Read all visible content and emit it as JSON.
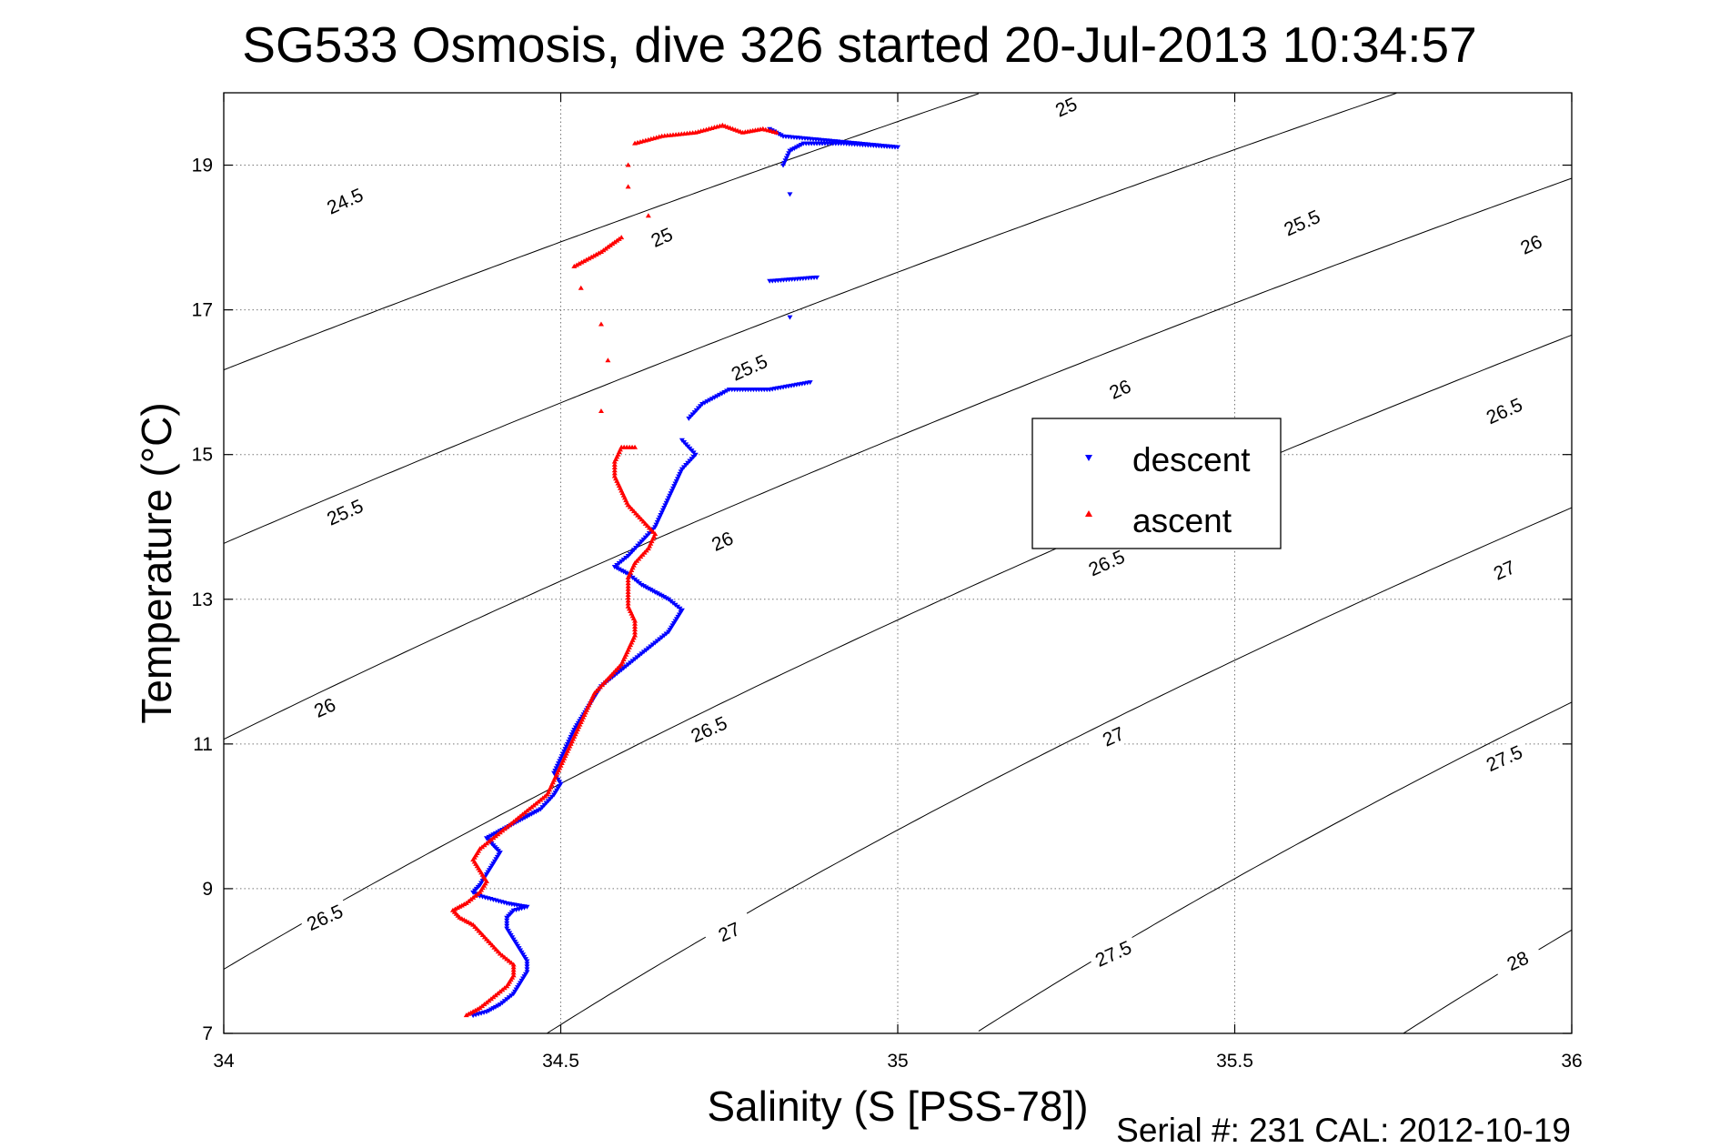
{
  "chart_data": {
    "type": "scatter",
    "title": "SG533 Osmosis, dive 326 started 20-Jul-2013 10:34:57",
    "xlabel": "Salinity (S [PSS-78])",
    "ylabel": "Temperature (°C)",
    "xlim": [
      34,
      36
    ],
    "ylim": [
      7,
      20
    ],
    "x_ticks": [
      34,
      34.5,
      35,
      35.5,
      36
    ],
    "x_tick_labels": [
      "34",
      "34.5",
      "35",
      "35.5",
      "36"
    ],
    "y_ticks": [
      7,
      9,
      11,
      13,
      15,
      17,
      19
    ],
    "y_tick_labels": [
      "7",
      "9",
      "11",
      "13",
      "15",
      "17",
      "19"
    ],
    "grid": true,
    "legend_position": "right-center",
    "footer": "Serial #: 231  CAL: 2012-10-19",
    "density_contours": {
      "levels": [
        24.5,
        25,
        25.5,
        26,
        26.5,
        27,
        27.5,
        28
      ],
      "level_labels": [
        "24.5",
        "25",
        "25.5",
        "26",
        "26.5",
        "27",
        "27.5",
        "28"
      ],
      "label_positions": [
        {
          "s": 34.18,
          "t": 18.5,
          "text": "24.5"
        },
        {
          "s": 34.65,
          "t": 18.0,
          "text": "25"
        },
        {
          "s": 35.25,
          "t": 19.8,
          "text": "25"
        },
        {
          "s": 34.18,
          "t": 14.2,
          "text": "25.5"
        },
        {
          "s": 34.78,
          "t": 16.2,
          "text": "25.5"
        },
        {
          "s": 35.6,
          "t": 18.2,
          "text": "25.5"
        },
        {
          "s": 34.15,
          "t": 11.5,
          "text": "26"
        },
        {
          "s": 34.74,
          "t": 13.8,
          "text": "26"
        },
        {
          "s": 35.33,
          "t": 15.9,
          "text": "26"
        },
        {
          "s": 35.94,
          "t": 17.9,
          "text": "26"
        },
        {
          "s": 34.15,
          "t": 8.6,
          "text": "26.5"
        },
        {
          "s": 34.72,
          "t": 11.2,
          "text": "26.5"
        },
        {
          "s": 35.31,
          "t": 13.5,
          "text": "26.5"
        },
        {
          "s": 35.9,
          "t": 15.6,
          "text": "26.5"
        },
        {
          "s": 34.75,
          "t": 8.4,
          "text": "27"
        },
        {
          "s": 35.32,
          "t": 11.1,
          "text": "27"
        },
        {
          "s": 35.9,
          "t": 13.4,
          "text": "27"
        },
        {
          "s": 35.32,
          "t": 8.1,
          "text": "27.5"
        },
        {
          "s": 35.9,
          "t": 10.8,
          "text": "27.5"
        },
        {
          "s": 35.92,
          "t": 8.0,
          "text": "28"
        }
      ]
    },
    "series": [
      {
        "name": "descent",
        "color": "#0000ff",
        "marker": "triangle-down",
        "points": [
          [
            34.37,
            7.25
          ],
          [
            34.39,
            7.3
          ],
          [
            34.41,
            7.4
          ],
          [
            34.43,
            7.55
          ],
          [
            34.44,
            7.7
          ],
          [
            34.45,
            7.85
          ],
          [
            34.45,
            8.0
          ],
          [
            34.44,
            8.15
          ],
          [
            34.43,
            8.3
          ],
          [
            34.42,
            8.45
          ],
          [
            34.42,
            8.6
          ],
          [
            34.43,
            8.7
          ],
          [
            34.45,
            8.75
          ],
          [
            34.42,
            8.8
          ],
          [
            34.4,
            8.85
          ],
          [
            34.38,
            8.9
          ],
          [
            34.37,
            8.95
          ],
          [
            34.38,
            9.05
          ],
          [
            34.39,
            9.2
          ],
          [
            34.4,
            9.35
          ],
          [
            34.41,
            9.5
          ],
          [
            34.4,
            9.6
          ],
          [
            34.39,
            9.7
          ],
          [
            34.41,
            9.8
          ],
          [
            34.43,
            9.9
          ],
          [
            34.45,
            10.0
          ],
          [
            34.47,
            10.1
          ],
          [
            34.49,
            10.3
          ],
          [
            34.5,
            10.45
          ],
          [
            34.49,
            10.6
          ],
          [
            34.5,
            10.8
          ],
          [
            34.51,
            11.0
          ],
          [
            34.52,
            11.2
          ],
          [
            34.53,
            11.35
          ],
          [
            34.54,
            11.5
          ],
          [
            34.55,
            11.65
          ],
          [
            34.56,
            11.8
          ],
          [
            34.58,
            11.95
          ],
          [
            34.6,
            12.1
          ],
          [
            34.62,
            12.25
          ],
          [
            34.64,
            12.4
          ],
          [
            34.66,
            12.55
          ],
          [
            34.67,
            12.7
          ],
          [
            34.68,
            12.85
          ],
          [
            34.66,
            13.0
          ],
          [
            34.64,
            13.1
          ],
          [
            34.62,
            13.2
          ],
          [
            34.6,
            13.35
          ],
          [
            34.58,
            13.45
          ],
          [
            34.6,
            13.6
          ],
          [
            34.62,
            13.8
          ],
          [
            34.64,
            14.0
          ],
          [
            34.65,
            14.2
          ],
          [
            34.66,
            14.4
          ],
          [
            34.67,
            14.6
          ],
          [
            34.68,
            14.8
          ],
          [
            34.7,
            15.0
          ],
          [
            34.68,
            15.2
          ],
          [
            34.69,
            15.5
          ],
          [
            34.71,
            15.7
          ],
          [
            34.75,
            15.9
          ],
          [
            34.81,
            15.9
          ],
          [
            34.87,
            16.0
          ],
          [
            34.84,
            16.9
          ],
          [
            34.81,
            17.4
          ],
          [
            34.88,
            17.45
          ],
          [
            34.84,
            18.6
          ],
          [
            34.83,
            19.0
          ],
          [
            34.84,
            19.2
          ],
          [
            34.86,
            19.3
          ],
          [
            34.92,
            19.3
          ],
          [
            35.0,
            19.25
          ],
          [
            34.83,
            19.4
          ],
          [
            34.81,
            19.5
          ]
        ]
      },
      {
        "name": "ascent",
        "color": "#ff0000",
        "marker": "triangle-up",
        "points": [
          [
            34.36,
            7.25
          ],
          [
            34.38,
            7.35
          ],
          [
            34.4,
            7.5
          ],
          [
            34.42,
            7.65
          ],
          [
            34.43,
            7.8
          ],
          [
            34.43,
            7.95
          ],
          [
            34.41,
            8.1
          ],
          [
            34.39,
            8.3
          ],
          [
            34.37,
            8.5
          ],
          [
            34.35,
            8.6
          ],
          [
            34.34,
            8.7
          ],
          [
            34.36,
            8.8
          ],
          [
            34.38,
            8.95
          ],
          [
            34.39,
            9.1
          ],
          [
            34.38,
            9.25
          ],
          [
            34.37,
            9.4
          ],
          [
            34.38,
            9.55
          ],
          [
            34.4,
            9.7
          ],
          [
            34.42,
            9.85
          ],
          [
            34.44,
            10.0
          ],
          [
            34.46,
            10.15
          ],
          [
            34.48,
            10.3
          ],
          [
            34.49,
            10.5
          ],
          [
            34.5,
            10.7
          ],
          [
            34.51,
            10.9
          ],
          [
            34.52,
            11.1
          ],
          [
            34.53,
            11.3
          ],
          [
            34.54,
            11.5
          ],
          [
            34.55,
            11.7
          ],
          [
            34.57,
            11.9
          ],
          [
            34.59,
            12.1
          ],
          [
            34.6,
            12.3
          ],
          [
            34.61,
            12.5
          ],
          [
            34.61,
            12.7
          ],
          [
            34.6,
            12.9
          ],
          [
            34.6,
            13.1
          ],
          [
            34.6,
            13.3
          ],
          [
            34.61,
            13.5
          ],
          [
            34.63,
            13.7
          ],
          [
            34.64,
            13.9
          ],
          [
            34.62,
            14.1
          ],
          [
            34.6,
            14.3
          ],
          [
            34.59,
            14.5
          ],
          [
            34.58,
            14.7
          ],
          [
            34.58,
            14.9
          ],
          [
            34.59,
            15.1
          ],
          [
            34.61,
            15.1
          ],
          [
            34.56,
            15.6
          ],
          [
            34.57,
            16.3
          ],
          [
            34.56,
            16.8
          ],
          [
            34.53,
            17.3
          ],
          [
            34.52,
            17.6
          ],
          [
            34.56,
            17.8
          ],
          [
            34.59,
            18.0
          ],
          [
            34.63,
            18.3
          ],
          [
            34.6,
            18.7
          ],
          [
            34.6,
            19.0
          ],
          [
            34.61,
            19.3
          ],
          [
            34.65,
            19.4
          ],
          [
            34.7,
            19.45
          ],
          [
            34.74,
            19.55
          ],
          [
            34.77,
            19.45
          ],
          [
            34.8,
            19.5
          ],
          [
            34.82,
            19.45
          ]
        ]
      }
    ]
  }
}
